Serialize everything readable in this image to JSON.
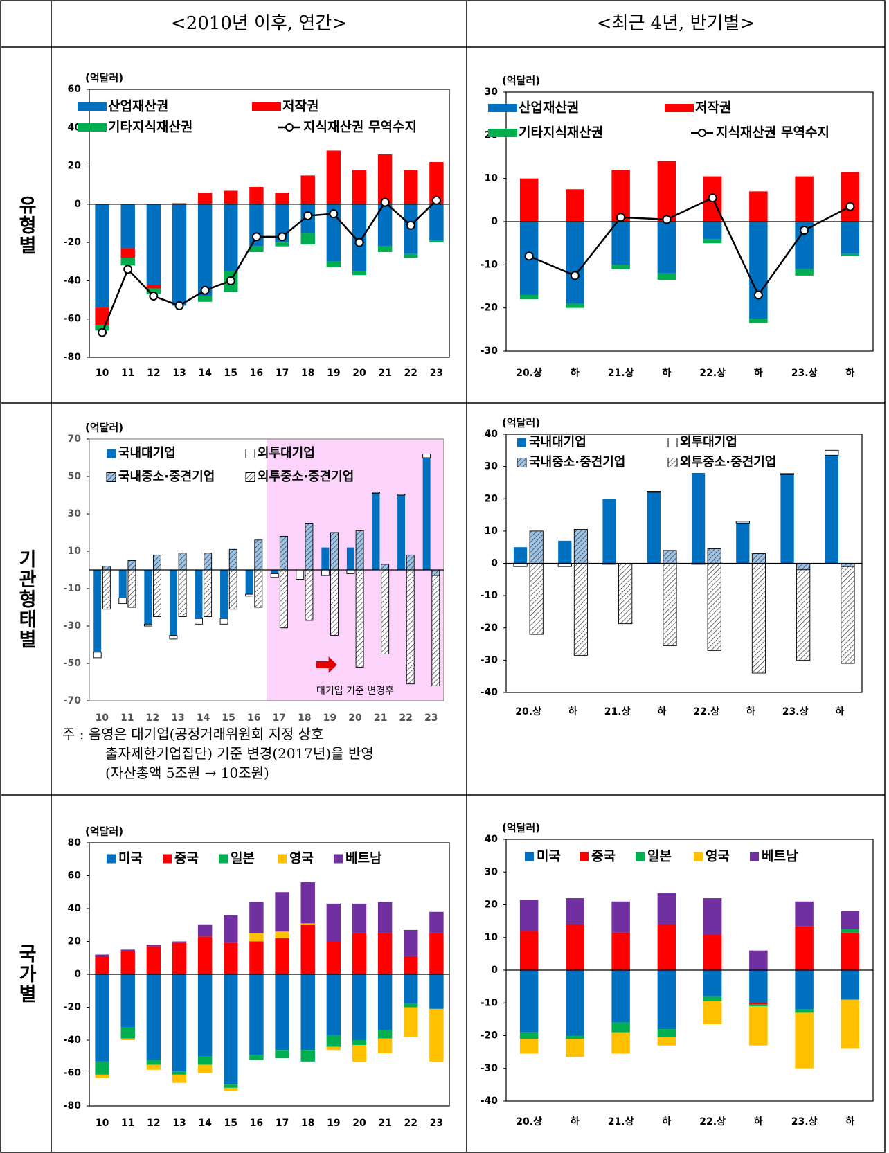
{
  "header": {
    "left": "<2010년 이후, 연간>",
    "right": "<최근 4년, 반기별>"
  },
  "row_labels": [
    "유형별",
    "기관형태별",
    "국가별"
  ],
  "note": [
    "주 : 음영은 대기업(공정거래위원회 지정 상호",
    "출자제한기업집단) 기준 변경(2017년)을 반영",
    "(자산총액 5조원 → 10조원)"
  ],
  "chart_data": [
    {
      "type": "bar",
      "unit": "(억달러)",
      "categories": [
        "10",
        "11",
        "12",
        "13",
        "14",
        "15",
        "16",
        "17",
        "18",
        "19",
        "20",
        "21",
        "22",
        "23"
      ],
      "ylim": [
        -80,
        60
      ],
      "yticks": [
        -80,
        -60,
        -40,
        -20,
        0,
        20,
        40,
        60
      ],
      "legend_columns": 2,
      "series": [
        {
          "name": "산업재산권",
          "color": "#0070c0",
          "values": [
            -54,
            -23,
            -42,
            -53,
            -48,
            -35,
            -22,
            -20,
            -15,
            -30,
            -35,
            -22,
            -26,
            -19
          ]
        },
        {
          "name": "저작권",
          "color": "#ff0000",
          "values": [
            -9,
            -5,
            -2,
            0.5,
            6,
            7,
            9,
            6,
            15,
            28,
            18,
            26,
            18,
            22
          ]
        },
        {
          "name": "기타지식재산권",
          "color": "#00b050",
          "values": [
            -3,
            -4,
            -3,
            0,
            -3,
            -11,
            -3,
            -2,
            -6,
            -3,
            -2,
            -3,
            -2,
            -1
          ]
        },
        {
          "name": "지식재산권 무역수지",
          "color": "#000000",
          "type": "line",
          "values": [
            -67,
            -34,
            -48,
            -53,
            -45,
            -40,
            -17,
            -17,
            -6,
            -5,
            -20,
            1,
            -11,
            2
          ]
        }
      ]
    },
    {
      "type": "bar",
      "unit": "(억달러)",
      "categories": [
        "20.상",
        "하",
        "21.상",
        "하",
        "22.상",
        "하",
        "23.상",
        "하"
      ],
      "ylim": [
        -30,
        30
      ],
      "yticks": [
        -30,
        -20,
        -10,
        0,
        10,
        20,
        30
      ],
      "legend_columns": 2,
      "series": [
        {
          "name": "산업재산권",
          "color": "#0070c0",
          "values": [
            -17,
            -19,
            -10,
            -12,
            -4,
            -22.5,
            -11,
            -7.5
          ]
        },
        {
          "name": "저작권",
          "color": "#ff0000",
          "values": [
            10,
            7.5,
            12,
            14,
            10.5,
            7,
            10.5,
            11.5
          ]
        },
        {
          "name": "기타지식재산권",
          "color": "#00b050",
          "values": [
            -1,
            -1,
            -1,
            -1.5,
            -1,
            -1,
            -1.5,
            -0.5
          ]
        },
        {
          "name": "지식재산권 무역수지",
          "color": "#000000",
          "type": "line",
          "values": [
            -8,
            -12.5,
            1,
            0.5,
            5.5,
            -17,
            -2,
            3.5
          ]
        }
      ]
    },
    {
      "type": "bar",
      "unit": "(억달러)",
      "categories": [
        "10",
        "11",
        "12",
        "13",
        "14",
        "15",
        "16",
        "17",
        "18",
        "19",
        "20",
        "21",
        "22",
        "23"
      ],
      "ylim": [
        -70,
        70
      ],
      "yticks": [
        -70,
        -50,
        -30,
        -10,
        10,
        30,
        50,
        70
      ],
      "legend_columns": 2,
      "shade_start": "17",
      "annotation": "대기업 기준 변경후",
      "series": [
        {
          "name": "국내대기업",
          "color": "#0070c0",
          "stack": "left",
          "values": [
            -44,
            -15,
            -29,
            -35,
            -26,
            -26,
            -13,
            -2,
            0,
            12,
            12,
            41,
            40,
            60
          ]
        },
        {
          "name": "외투대기업",
          "color": "#ffffff",
          "stack": "left",
          "values": [
            -3,
            -3,
            -1,
            -2,
            -3,
            -3,
            -1,
            -2,
            -5,
            -3,
            -2,
            0.5,
            0.5,
            2
          ]
        },
        {
          "name": "국내중소·중견기업",
          "color": "#9dc3e6",
          "hatch": true,
          "stack": "right",
          "values": [
            2,
            5,
            8,
            9,
            9,
            11,
            16,
            18,
            25,
            20,
            21,
            3,
            8,
            -3
          ]
        },
        {
          "name": "외투중소·중견기업",
          "color": "#ffffff",
          "hatch": true,
          "stack": "right",
          "values": [
            -21,
            -20,
            -25,
            -25,
            -25,
            -21,
            -20,
            -31,
            -27,
            -35,
            -52,
            -45,
            -61,
            -59
          ]
        }
      ]
    },
    {
      "type": "bar",
      "unit": "(억달러)",
      "categories": [
        "20.상",
        "하",
        "21.상",
        "하",
        "22.상",
        "하",
        "23.상",
        "하"
      ],
      "ylim": [
        -40,
        40
      ],
      "yticks": [
        -40,
        -30,
        -20,
        -10,
        0,
        10,
        20,
        30,
        40
      ],
      "legend_columns": 2,
      "series": [
        {
          "name": "국내대기업",
          "color": "#0070c0",
          "stack": "left",
          "values": [
            5,
            7,
            20,
            22,
            28,
            12.5,
            27.5,
            33.5
          ]
        },
        {
          "name": "외투대기업",
          "color": "#ffffff",
          "stack": "left",
          "values": [
            -1,
            -1,
            -0.3,
            0.3,
            -0.3,
            0.5,
            0.3,
            1.5
          ]
        },
        {
          "name": "국내중소·중견기업",
          "color": "#9dc3e6",
          "hatch": true,
          "stack": "right",
          "values": [
            10,
            10.5,
            0,
            4,
            4.5,
            3,
            -2,
            -1
          ]
        },
        {
          "name": "외투중소·중견기업",
          "color": "#ffffff",
          "hatch": true,
          "stack": "right",
          "values": [
            -22,
            -28.5,
            -18.7,
            -25.5,
            -27,
            -34,
            -28,
            -30
          ]
        }
      ]
    },
    {
      "type": "bar",
      "unit": "(억달러)",
      "categories": [
        "10",
        "11",
        "12",
        "13",
        "14",
        "15",
        "16",
        "17",
        "18",
        "19",
        "20",
        "21",
        "22",
        "23"
      ],
      "ylim": [
        -80,
        80
      ],
      "yticks": [
        -80,
        -60,
        -40,
        -20,
        0,
        20,
        40,
        60,
        80
      ],
      "legend_columns": 5,
      "series": [
        {
          "name": "미국",
          "color": "#0070c0",
          "values": [
            -53,
            -32,
            -52,
            -59,
            -50,
            -67,
            -49,
            -46,
            -46,
            -37,
            -40,
            -34,
            -18,
            -21
          ]
        },
        {
          "name": "중국",
          "color": "#ff0000",
          "values": [
            11,
            14,
            17,
            19,
            23,
            19,
            20,
            22,
            30,
            20,
            25,
            25,
            11,
            25
          ]
        },
        {
          "name": "일본",
          "color": "#00b050",
          "values": [
            -8,
            -7,
            -3,
            -2,
            -5,
            -2,
            -3,
            -5,
            -7,
            -7,
            -3,
            -5,
            -2,
            0
          ]
        },
        {
          "name": "영국",
          "color": "#ffc000",
          "values": [
            -2,
            -1,
            -3,
            -5,
            -5,
            -2,
            5,
            4,
            1,
            -2,
            -10,
            -9,
            -18,
            -32
          ]
        },
        {
          "name": "베트남",
          "color": "#7030a0",
          "values": [
            1,
            1,
            1,
            1,
            7,
            17,
            19,
            24,
            25,
            23,
            18,
            19,
            16,
            13
          ]
        }
      ]
    },
    {
      "type": "bar",
      "unit": "(억달러)",
      "categories": [
        "20.상",
        "하",
        "21.상",
        "하",
        "22.상",
        "하",
        "23.상",
        "하"
      ],
      "ylim": [
        -40,
        40
      ],
      "yticks": [
        -40,
        -30,
        -20,
        -10,
        0,
        10,
        20,
        30,
        40
      ],
      "legend_columns": 5,
      "series": [
        {
          "name": "미국",
          "color": "#0070c0",
          "values": [
            -19,
            -20,
            -16,
            -18,
            -8,
            -10,
            -12,
            -9
          ]
        },
        {
          "name": "중국",
          "color": "#ff0000",
          "values": [
            12,
            14,
            11.5,
            14,
            11,
            -0.5,
            13.5,
            11.5
          ]
        },
        {
          "name": "일본",
          "color": "#00b050",
          "values": [
            -2,
            -1,
            -3,
            -2.5,
            -1.5,
            -0.5,
            -1,
            1
          ]
        },
        {
          "name": "영국",
          "color": "#ffc000",
          "values": [
            -4.5,
            -5.5,
            -6.5,
            -2.5,
            -7,
            -12,
            -17,
            -15
          ]
        },
        {
          "name": "베트남",
          "color": "#7030a0",
          "values": [
            9.5,
            8,
            9.5,
            9.5,
            11,
            6,
            7.5,
            5.5
          ]
        }
      ]
    }
  ]
}
